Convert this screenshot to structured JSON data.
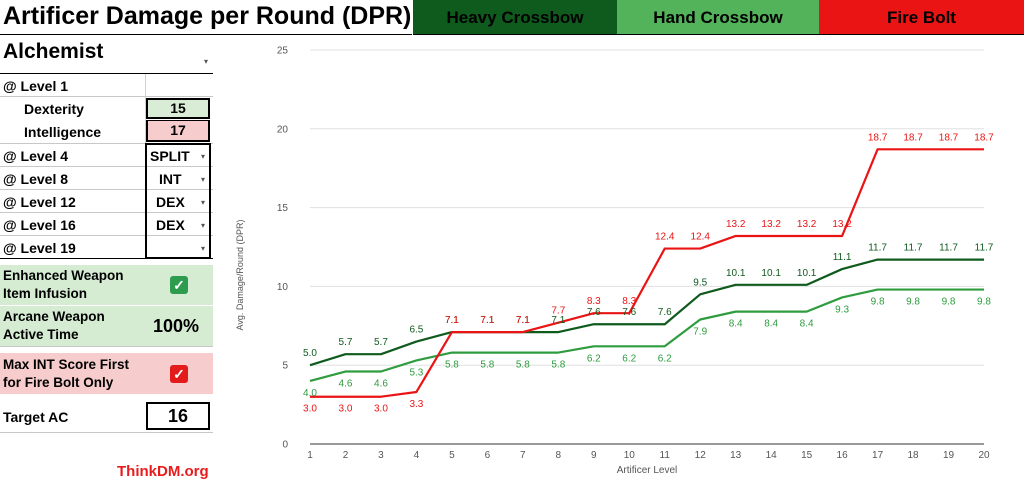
{
  "header": {
    "title": "Artificer Damage per Round (DPR)",
    "legend": [
      {
        "label": "Heavy Crossbow",
        "color": "#0f5a1d"
      },
      {
        "label": "Hand Crossbow",
        "color": "#52b35a"
      },
      {
        "label": "Fire Bolt",
        "color": "#ea1414"
      }
    ]
  },
  "sidebar": {
    "class_name": "Alchemist",
    "level1_label": "@ Level 1",
    "dexterity_label": "Dexterity",
    "dexterity_value": "15",
    "intelligence_label": "Intelligence",
    "intelligence_value": "17",
    "level4_label": "@ Level 4",
    "level4_value": "SPLIT",
    "level8_label": "@ Level 8",
    "level8_value": "INT",
    "level12_label": "@ Level 12",
    "level12_value": "DEX",
    "level16_label": "@ Level 16",
    "level16_value": "DEX",
    "level19_label": "@ Level 19",
    "level19_value": "",
    "infusion_label_1": "Enhanced Weapon",
    "infusion_label_2": "Item Infusion",
    "infusion_checked": true,
    "arcane_label_1": "Arcane Weapon",
    "arcane_label_2": "Active Time",
    "arcane_value": "100%",
    "maxint_label_1": "Max INT Score First",
    "maxint_label_2": "for Fire Bolt Only",
    "maxint_checked": true,
    "target_ac_label": "Target AC",
    "target_ac_value": "16",
    "check_glyph": "✓",
    "dropdown_glyph": "▾"
  },
  "footer": {
    "brand": "ThinkDM.org"
  },
  "colors": {
    "dex_bg": "#d8ecd6",
    "int_bg": "#f6cccc",
    "green_section_bg": "#d5ecd3",
    "red_section_bg": "#f6cccc",
    "check_green": "#2e9c4f",
    "check_red": "#e31b1b",
    "grid": "#e0e0e0",
    "axis_text": "#555555"
  },
  "chart_data": {
    "type": "line",
    "title": "",
    "xlabel": "Artificer Level",
    "ylabel": "Avg. Damage/Round (DPR)",
    "ylim": [
      0,
      25
    ],
    "yticks": [
      0,
      5,
      10,
      15,
      20,
      25
    ],
    "grid": true,
    "legend_position": "top",
    "x": [
      1,
      2,
      3,
      4,
      5,
      6,
      7,
      8,
      9,
      10,
      11,
      12,
      13,
      14,
      15,
      16,
      17,
      18,
      19,
      20
    ],
    "series": [
      {
        "name": "Heavy Crossbow",
        "color": "#0f5a1d",
        "values": [
          5.0,
          5.7,
          5.7,
          6.5,
          7.1,
          7.1,
          7.1,
          7.1,
          7.6,
          7.6,
          7.6,
          9.5,
          10.1,
          10.1,
          10.1,
          11.1,
          11.7,
          11.7,
          11.7,
          11.7
        ]
      },
      {
        "name": "Hand Crossbow",
        "color": "#2e9c3f",
        "values": [
          4.0,
          4.6,
          4.6,
          5.3,
          5.8,
          5.8,
          5.8,
          5.8,
          6.2,
          6.2,
          6.2,
          7.9,
          8.4,
          8.4,
          8.4,
          9.3,
          9.8,
          9.8,
          9.8,
          9.8
        ]
      },
      {
        "name": "Fire Bolt",
        "color": "#ea1414",
        "values": [
          3.0,
          3.0,
          3.0,
          3.3,
          7.1,
          7.1,
          7.1,
          7.7,
          8.3,
          8.3,
          12.4,
          12.4,
          13.2,
          13.2,
          13.2,
          13.2,
          18.7,
          18.7,
          18.7,
          18.7
        ]
      }
    ]
  }
}
